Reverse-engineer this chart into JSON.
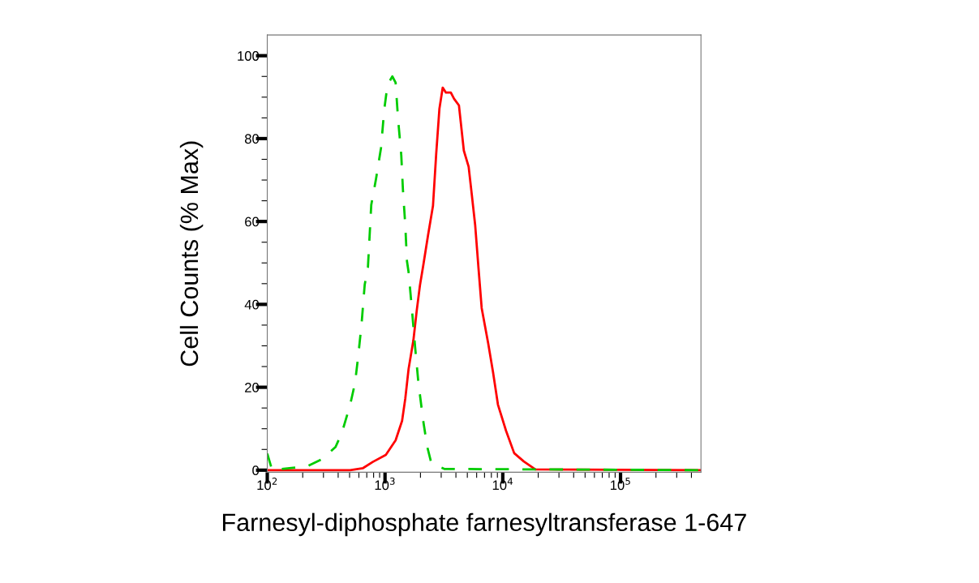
{
  "chart_data": {
    "type": "line",
    "xlabel": "Farnesyl-diphosphate farnesyltransferase 1-647",
    "ylabel": "Cell Counts (% Max)",
    "log": "x",
    "xlim": [
      100,
      482000
    ],
    "ylim": [
      -0.5,
      105
    ],
    "grid": false,
    "legend": false,
    "marker": "none",
    "xticks": [
      {
        "value": 100,
        "label": "10$^{2}$"
      },
      {
        "value": 200,
        "label": null
      },
      {
        "value": 300,
        "label": null
      },
      {
        "value": 400,
        "label": null
      },
      {
        "value": 500,
        "label": null
      },
      {
        "value": 600,
        "label": null
      },
      {
        "value": 700,
        "label": null
      },
      {
        "value": 800,
        "label": null
      },
      {
        "value": 900,
        "label": null
      },
      {
        "value": 1000,
        "label": "10$^{3}$"
      },
      {
        "value": 2000,
        "label": null
      },
      {
        "value": 3000,
        "label": null
      },
      {
        "value": 4000,
        "label": null
      },
      {
        "value": 5000,
        "label": null
      },
      {
        "value": 6000,
        "label": null
      },
      {
        "value": 7000,
        "label": null
      },
      {
        "value": 8000,
        "label": null
      },
      {
        "value": 9000,
        "label": null
      },
      {
        "value": 10000,
        "label": "10$^{4}$"
      },
      {
        "value": 20000,
        "label": null
      },
      {
        "value": 30000,
        "label": null
      },
      {
        "value": 40000,
        "label": null
      },
      {
        "value": 50000,
        "label": null
      },
      {
        "value": 60000,
        "label": null
      },
      {
        "value": 70000,
        "label": null
      },
      {
        "value": 80000,
        "label": null
      },
      {
        "value": 90000,
        "label": null
      },
      {
        "value": 100000,
        "label": "10$^{5}$"
      },
      {
        "value": 200000,
        "label": null
      },
      {
        "value": 300000,
        "label": null
      },
      {
        "value": 400000,
        "label": null
      }
    ],
    "yticks": [
      0,
      {
        "value": 5,
        "label": null
      },
      {
        "value": 10,
        "label": null
      },
      {
        "value": 15,
        "label": null
      },
      20,
      {
        "value": 25,
        "label": null
      },
      {
        "value": 30,
        "label": null
      },
      {
        "value": 35,
        "label": null
      },
      40,
      {
        "value": 45,
        "label": null
      },
      {
        "value": 50,
        "label": null
      },
      {
        "value": 55,
        "label": null
      },
      60,
      {
        "value": 65,
        "label": null
      },
      {
        "value": 70,
        "label": null
      },
      {
        "value": 75,
        "label": null
      },
      80,
      {
        "value": 85,
        "label": null
      },
      {
        "value": 90,
        "label": null
      },
      {
        "value": 95,
        "label": null
      },
      100
    ],
    "series": [
      {
        "color": "#ff0000",
        "line_style": "solid",
        "x": [
          100,
          505,
          651,
          788,
          1016,
          1230,
          1396,
          1487,
          1585,
          1743,
          1857,
          1980,
          2110,
          2320,
          2555,
          2720,
          2897,
          3090,
          3290,
          3620,
          3860,
          4245,
          4670,
          5130,
          5470,
          5830,
          6210,
          6620,
          7520,
          8270,
          9100,
          10660,
          12500,
          15100,
          18900,
          482000
        ],
        "values": [
          0,
          0,
          0.5,
          2,
          3.7,
          7.2,
          11.9,
          17.3,
          24.4,
          31.4,
          38.4,
          44.6,
          49.3,
          56.7,
          63.8,
          76.3,
          87.2,
          92.3,
          91.1,
          91.1,
          89.6,
          88,
          77.1,
          73.2,
          66.2,
          59.1,
          49,
          39.1,
          30.6,
          23.6,
          15.8,
          9.5,
          4.1,
          2.1,
          0.2,
          0
        ]
      },
      {
        "color": "#00cc00",
        "line_style": "dashed",
        "x": [
          100,
          110,
          221,
          294,
          380,
          430,
          505,
          556,
          592,
          631,
          672,
          716,
          764,
          840,
          924,
          985,
          1050,
          1154,
          1230,
          1290,
          1374,
          1419,
          1487,
          1535,
          1585,
          1690,
          1800,
          1919,
          2110,
          2285,
          2473,
          3185,
          482000
        ],
        "values": [
          4,
          0,
          1,
          2.7,
          5.6,
          9,
          15.7,
          21,
          27.5,
          35,
          44.7,
          49,
          64,
          70.4,
          77.7,
          87,
          93,
          95,
          93.5,
          84.8,
          76,
          67.7,
          59,
          50.5,
          47.8,
          39,
          29.8,
          21.2,
          11.9,
          5.6,
          1.7,
          0.3,
          0
        ]
      }
    ]
  }
}
